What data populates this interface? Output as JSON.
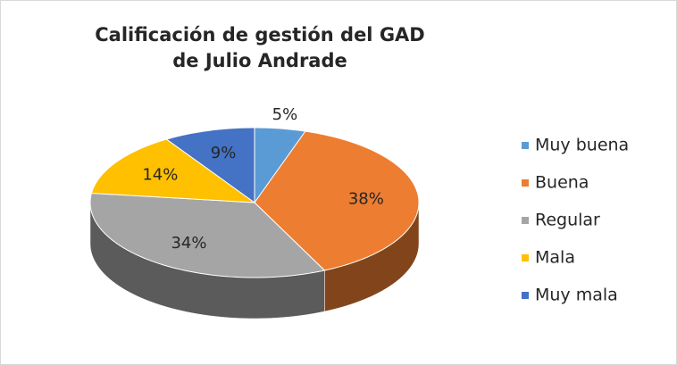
{
  "chart_data": {
    "type": "pie",
    "title": "Calificación de gestión del GAD de Julio Andrade",
    "categories": [
      "Muy buena",
      "Buena",
      "Regular",
      "Mala",
      "Muy mala"
    ],
    "values": [
      5,
      38,
      34,
      14,
      9
    ],
    "value_labels": [
      "5%",
      "38%",
      "34%",
      "14%",
      "9%"
    ],
    "colors": [
      "#5b9bd5",
      "#ed7d31",
      "#a5a5a5",
      "#ffc000",
      "#4472c4"
    ],
    "legend": "right"
  }
}
